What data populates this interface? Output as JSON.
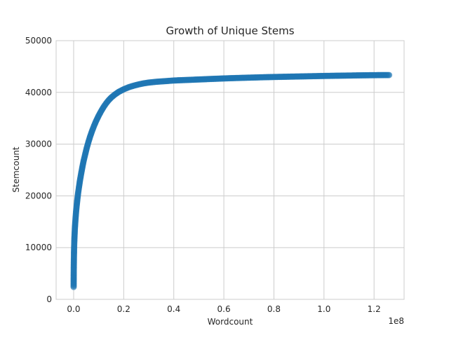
{
  "chart_data": {
    "type": "scatter",
    "title": "Growth of Unique Stems",
    "xlabel": "Wordcount",
    "ylabel": "Stemcount",
    "x_offset_label": "1e8",
    "xlim": [
      -7000000,
      132000000
    ],
    "ylim": [
      0,
      50000
    ],
    "x_ticks": [
      0,
      20000000,
      40000000,
      60000000,
      80000000,
      100000000,
      120000000
    ],
    "x_tick_labels": [
      "0.0",
      "0.2",
      "0.4",
      "0.6",
      "0.8",
      "1.0",
      "1.2"
    ],
    "y_ticks": [
      0,
      10000,
      20000,
      30000,
      40000,
      50000
    ],
    "y_tick_labels": [
      "0",
      "10000",
      "20000",
      "30000",
      "40000",
      "50000"
    ],
    "grid": true,
    "style": "whitegrid",
    "marker": "circle",
    "point_color": "#1f77b4",
    "point_alpha": 0.65,
    "series": [
      {
        "points": [
          [
            0,
            2400
          ],
          [
            10000,
            3400
          ],
          [
            20000,
            4300
          ],
          [
            30000,
            5000
          ],
          [
            45000,
            5800
          ],
          [
            60000,
            6500
          ],
          [
            80000,
            7200
          ],
          [
            100000,
            7900
          ],
          [
            130000,
            8700
          ],
          [
            160000,
            9400
          ],
          [
            200000,
            10200
          ],
          [
            250000,
            11000
          ],
          [
            300000,
            11700
          ],
          [
            400000,
            12800
          ],
          [
            500000,
            13800
          ],
          [
            650000,
            14900
          ],
          [
            800000,
            15900
          ],
          [
            1000000,
            17100
          ],
          [
            1250000,
            18300
          ],
          [
            1500000,
            19400
          ],
          [
            1800000,
            20600
          ],
          [
            2100000,
            21600
          ],
          [
            2500000,
            22900
          ],
          [
            3000000,
            24300
          ],
          [
            3500000,
            25600
          ],
          [
            4000000,
            26800
          ],
          [
            4600000,
            28000
          ],
          [
            5200000,
            29200
          ],
          [
            5900000,
            30400
          ],
          [
            6600000,
            31500
          ],
          [
            7400000,
            32600
          ],
          [
            8200000,
            33600
          ],
          [
            9000000,
            34500
          ],
          [
            10000000,
            35500
          ],
          [
            11000000,
            36400
          ],
          [
            12000000,
            37200
          ],
          [
            13000000,
            37900
          ],
          [
            14000000,
            38500
          ],
          [
            15000000,
            39000
          ],
          [
            16500000,
            39600
          ],
          [
            18000000,
            40100
          ],
          [
            20000000,
            40600
          ],
          [
            22000000,
            41000
          ],
          [
            24000000,
            41300
          ],
          [
            26000000,
            41550
          ],
          [
            28000000,
            41750
          ],
          [
            30000000,
            41900
          ],
          [
            33000000,
            42050
          ],
          [
            36000000,
            42150
          ],
          [
            40000000,
            42300
          ],
          [
            45000000,
            42400
          ],
          [
            50000000,
            42500
          ],
          [
            55000000,
            42600
          ],
          [
            60000000,
            42700
          ],
          [
            65000000,
            42780
          ],
          [
            70000000,
            42850
          ],
          [
            75000000,
            42920
          ],
          [
            80000000,
            42980
          ],
          [
            85000000,
            43030
          ],
          [
            90000000,
            43080
          ],
          [
            95000000,
            43130
          ],
          [
            100000000,
            43180
          ],
          [
            105000000,
            43220
          ],
          [
            110000000,
            43260
          ],
          [
            115000000,
            43300
          ],
          [
            120000000,
            43330
          ],
          [
            125000000,
            43350
          ],
          [
            126000000,
            43350
          ]
        ]
      }
    ]
  }
}
